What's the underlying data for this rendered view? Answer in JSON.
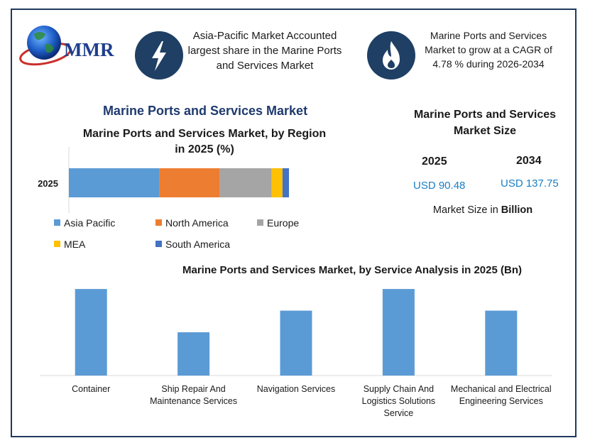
{
  "header": {
    "logo_text": "MMR",
    "callout_left": [
      "Asia-Pacific Market Accounted",
      "largest share in the Marine Ports",
      "and Services Market"
    ],
    "callout_right": [
      "Marine Ports and Services",
      "Market to grow at a CAGR of",
      "4.78 % during 2026-2034"
    ]
  },
  "main_title": "Marine Ports and Services Market",
  "market_size": {
    "title_lines": [
      "Marine Ports and Services",
      "Market Size"
    ],
    "year_a": "2025",
    "year_b": "2034",
    "value_a": "USD 90.48",
    "value_b": "USD 137.75",
    "note_prefix": "Market Size in ",
    "note_bold": "Billion"
  },
  "colors": {
    "frame": "#1f3a5c",
    "icon_bg": "#1f3f64",
    "asia_pacific": "#5b9bd5",
    "north_america": "#ed7d31",
    "europe": "#a5a5a5",
    "mea": "#ffc000",
    "south_america": "#4472c4",
    "service_bar": "#5b9bd5"
  },
  "chart_data": [
    {
      "type": "bar",
      "orientation": "horizontal-stacked",
      "title_lines": [
        "Marine Ports and Services Market, by Region",
        "in 2025 (%)"
      ],
      "categories": [
        "2025"
      ],
      "series": [
        {
          "name": "Asia Pacific",
          "values": [
            42
          ]
        },
        {
          "name": "North America",
          "values": [
            28
          ]
        },
        {
          "name": "Europe",
          "values": [
            24
          ]
        },
        {
          "name": "MEA",
          "values": [
            5
          ]
        },
        {
          "name": "South America",
          "values": [
            3
          ]
        }
      ],
      "xlim": [
        0,
        102
      ],
      "legend_position": "bottom"
    },
    {
      "type": "bar",
      "title": "Marine Ports and Services Market, by Service Analysis in 2025 (Bn)",
      "categories": [
        [
          "Container"
        ],
        [
          "Ship Repair And",
          "Maintenance Services"
        ],
        [
          "Navigation Services"
        ],
        [
          "Supply Chain And",
          "Logistics Solutions",
          "Service"
        ],
        [
          "Mechanical and Electrical",
          "Engineering Services"
        ]
      ],
      "values": [
        22,
        11,
        16.5,
        22,
        16.5
      ],
      "ylim": [
        0,
        24
      ],
      "grid": false
    }
  ]
}
